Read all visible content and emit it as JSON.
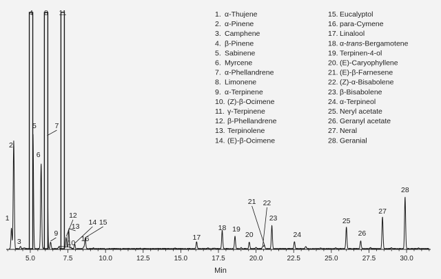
{
  "chart_data": {
    "type": "line",
    "xlabel": "Min",
    "xlim": [
      3.4,
      31.6
    ],
    "xticks": [
      5.0,
      7.5,
      10.0,
      12.5,
      15.0,
      17.5,
      20.0,
      22.5,
      25.0,
      27.5,
      30.0
    ],
    "xtick_labels": [
      "5.0",
      "7.5",
      "10.0",
      "12.5",
      "15.0",
      "17.5",
      "20.0",
      "22.5",
      "25.0",
      "27.5",
      "30.0"
    ],
    "ylim": [
      0,
      100
    ],
    "grid": false,
    "legend_placement": "top-right",
    "peaks": [
      {
        "id": "1",
        "x": 3.75,
        "y": 9,
        "name": "α-Thujene"
      },
      {
        "id": "2",
        "x": 3.9,
        "y": 47,
        "name": "α-Pinene"
      },
      {
        "id": "3",
        "x": 4.35,
        "y": 1,
        "name": "Camphene"
      },
      {
        "id": "4",
        "x": 5.05,
        "y": 103,
        "name": "β-Pinene"
      },
      {
        "id": "5",
        "x": 5.18,
        "y": 50,
        "name": "Sabinene"
      },
      {
        "id": "6",
        "x": 5.72,
        "y": 37,
        "name": "Myrcene"
      },
      {
        "id": "7",
        "x": 6.12,
        "y": 49,
        "name": "α-Phellandrene"
      },
      {
        "id": "8",
        "x": 6.05,
        "y": 103,
        "name": "Limonene"
      },
      {
        "id": "9",
        "x": 6.35,
        "y": 3,
        "name": "α-Terpinene"
      },
      {
        "id": "10",
        "x": 6.9,
        "y": 0.8,
        "name": "(Z)-β-Ocimene"
      },
      {
        "id": "11",
        "x": 7.15,
        "y": 103,
        "name": "γ-Terpinene"
      },
      {
        "id": "12",
        "x": 7.38,
        "y": 5,
        "name": "β-Phellandrene"
      },
      {
        "id": "13",
        "x": 7.55,
        "y": 8.5,
        "name": "Terpinolene"
      },
      {
        "id": "14",
        "x": 7.95,
        "y": 2,
        "name": "(E)-β-Ocimene"
      },
      {
        "id": "15",
        "x": 8.65,
        "y": 4.5,
        "name": "Eucalyptol"
      },
      {
        "id": "16",
        "x": 8.55,
        "y": 0.8,
        "name": "para-Cymene"
      },
      {
        "id": "17",
        "x": 16.05,
        "y": 3,
        "name": "Linalool"
      },
      {
        "id": "18",
        "x": 17.75,
        "y": 8,
        "name": "α-trans-Bergamotene"
      },
      {
        "id": "19",
        "x": 18.6,
        "y": 5.5,
        "name": "Terpinen-4-ol"
      },
      {
        "id": "20",
        "x": 19.55,
        "y": 3,
        "name": "(E)-Caryophyllene"
      },
      {
        "id": "21",
        "x": 20.55,
        "y": 1.5,
        "name": "(E)-β-Farnesene"
      },
      {
        "id": "22",
        "x": 20.45,
        "y": 1.2,
        "name": "(Z)-α-Bisabolene"
      },
      {
        "id": "23",
        "x": 21.05,
        "y": 10,
        "name": "β-Bisabolene"
      },
      {
        "id": "24",
        "x": 22.55,
        "y": 3.2,
        "name": "α-Terpineol"
      },
      {
        "id": "25",
        "x": 26.0,
        "y": 9.5,
        "name": "Neryl acetate"
      },
      {
        "id": "26",
        "x": 26.95,
        "y": 3.5,
        "name": "Geranyl acetate"
      },
      {
        "id": "27",
        "x": 28.4,
        "y": 14,
        "name": "Neral"
      },
      {
        "id": "28",
        "x": 29.9,
        "y": 22.5,
        "name": "Geranial"
      }
    ],
    "minor_peaks": [
      {
        "x": 4.6,
        "y": 0.4
      },
      {
        "x": 5.95,
        "y": 0.6
      },
      {
        "x": 7.7,
        "y": 0.5
      },
      {
        "x": 9.2,
        "y": 0.3
      },
      {
        "x": 12.3,
        "y": 0.2
      },
      {
        "x": 14.6,
        "y": 0.2
      },
      {
        "x": 16.8,
        "y": 0.3
      },
      {
        "x": 17.2,
        "y": 0.3
      },
      {
        "x": 19.0,
        "y": 0.4
      },
      {
        "x": 20.0,
        "y": 0.6
      },
      {
        "x": 23.3,
        "y": 1.0
      },
      {
        "x": 24.3,
        "y": 0.3
      },
      {
        "x": 25.3,
        "y": 0.3
      },
      {
        "x": 27.6,
        "y": 0.4
      },
      {
        "x": 29.0,
        "y": 0.3
      },
      {
        "x": 30.8,
        "y": 0.3
      }
    ],
    "legend": {
      "columns": [
        [
          {
            "num": "1.",
            "text": "α-Thujene"
          },
          {
            "num": "2.",
            "text": "α-Pinene"
          },
          {
            "num": "3.",
            "text": "Camphene"
          },
          {
            "num": "4.",
            "text": "β-Pinene"
          },
          {
            "num": "5.",
            "text": "Sabinene"
          },
          {
            "num": "6.",
            "text": "Myrcene"
          },
          {
            "num": "7.",
            "text": "α-Phellandrene"
          },
          {
            "num": "8.",
            "text": "Limonene"
          },
          {
            "num": "9.",
            "text": "α-Terpinene"
          },
          {
            "num": "10.",
            "text": "(Z)-β-Ocimene"
          },
          {
            "num": "11.",
            "text": "γ-Terpinene"
          },
          {
            "num": "12.",
            "text": "β-Phellandrene"
          },
          {
            "num": "13.",
            "text": "Terpinolene"
          },
          {
            "num": "14.",
            "text": "(E)-β-Ocimene"
          }
        ],
        [
          {
            "num": "15.",
            "text": "Eucalyptol"
          },
          {
            "num": "16.",
            "text": "para-Cymene"
          },
          {
            "num": "17.",
            "text": "Linalool"
          },
          {
            "num": "18.",
            "text": "α-trans-Bergamotene",
            "italic_part": "trans"
          },
          {
            "num": "19.",
            "text": "Terpinen-4-ol"
          },
          {
            "num": "20.",
            "text": "(E)-Caryophyllene"
          },
          {
            "num": "21.",
            "text": "(E)-β-Farnesene"
          },
          {
            "num": "22.",
            "text": "(Z)-α-Bisabolene"
          },
          {
            "num": "23.",
            "text": "β-Bisabolene"
          },
          {
            "num": "24.",
            "text": "α-Terpineol"
          },
          {
            "num": "25.",
            "text": "Neryl acetate"
          },
          {
            "num": "26.",
            "text": "Geranyl acetate"
          },
          {
            "num": "27.",
            "text": "Neral"
          },
          {
            "num": "28.",
            "text": "Geranial"
          }
        ]
      ]
    },
    "colors": {
      "trace": "#1a1a1a",
      "background": "#f3f3f3"
    }
  }
}
